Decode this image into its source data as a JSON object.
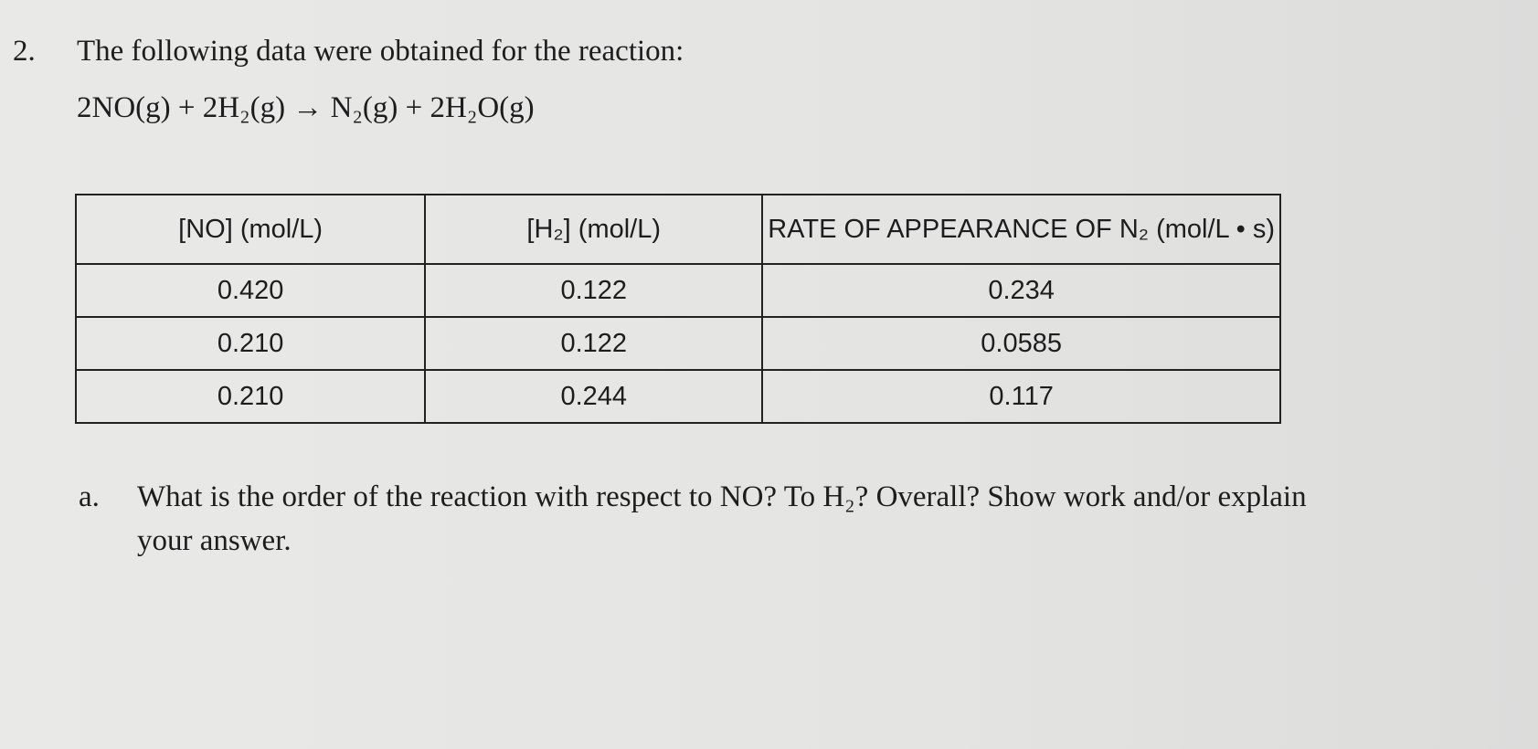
{
  "question": {
    "number": "2.",
    "text": "The following data were obtained for the reaction:",
    "equation": "2NO(g) + 2H₂(g) → N₂(g) + 2H₂O(g)"
  },
  "table": {
    "headers": [
      "[NO] (mol/L)",
      "[H₂] (mol/L)",
      "RATE OF APPEARANCE OF N₂ (mol/L • s)"
    ],
    "rows": [
      [
        "0.420",
        "0.122",
        "0.234"
      ],
      [
        "0.210",
        "0.122",
        "0.0585"
      ],
      [
        "0.210",
        "0.244",
        "0.117"
      ]
    ]
  },
  "part_a": {
    "label": "a.",
    "text": "What is the order of the reaction with respect to NO? To H₂? Overall? Show work and/or explain your answer."
  }
}
